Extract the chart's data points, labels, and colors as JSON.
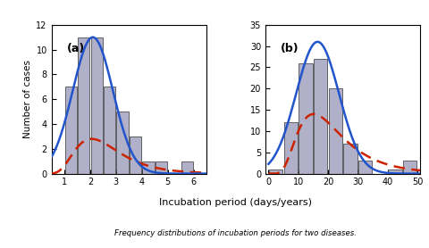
{
  "panel_a": {
    "label": "(a)",
    "bar_edges": [
      0.5,
      1.0,
      1.5,
      2.0,
      2.5,
      3.0,
      3.5,
      4.0,
      4.5,
      5.0,
      5.5,
      6.0
    ],
    "bar_heights": [
      0,
      7,
      11,
      11,
      7,
      5,
      3,
      1,
      1,
      0,
      1
    ],
    "xlim": [
      0.5,
      6.5
    ],
    "xticks": [
      1,
      2,
      3,
      4,
      5,
      6
    ],
    "ylim": [
      0,
      12
    ],
    "yticks": [
      0,
      2,
      4,
      6,
      8,
      10,
      12
    ],
    "blue_mu": 2.1,
    "blue_sigma": 0.78,
    "blue_amp": 11.0,
    "red_mu": 0.72,
    "red_sigma": 0.42,
    "red_amp": 2.8
  },
  "panel_b": {
    "label": "(b)",
    "bar_edges": [
      0,
      5,
      10,
      15,
      20,
      25,
      30,
      35,
      40,
      45,
      50
    ],
    "bar_heights": [
      1,
      12,
      26,
      27,
      20,
      7,
      3,
      0,
      1,
      3
    ],
    "xlim": [
      -1,
      51
    ],
    "xticks": [
      0,
      10,
      20,
      30,
      40,
      50
    ],
    "ylim": [
      0,
      35
    ],
    "yticks": [
      0,
      5,
      10,
      15,
      20,
      25,
      30,
      35
    ],
    "blue_mu": 16.5,
    "blue_sigma": 7.2,
    "blue_amp": 31.0,
    "red_mu": 2.72,
    "red_sigma": 0.5,
    "red_amp": 14.0
  },
  "bar_color": "#b0b0c8",
  "bar_edgecolor": "#333333",
  "line_blue": "#2255cc",
  "line_red": "#cc2200",
  "xlabel": "Incubation period (days/years)",
  "ylabel": "Number of cases",
  "caption": "Frequency distributions of incubation periods for two diseases.",
  "background": "#ffffff"
}
